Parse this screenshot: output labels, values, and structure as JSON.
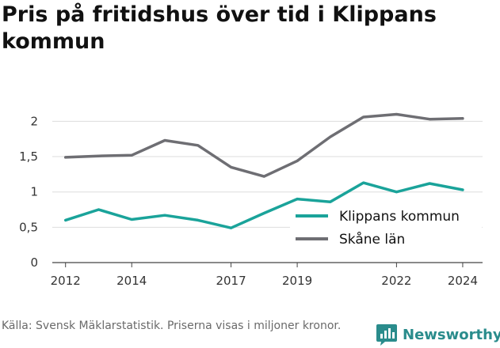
{
  "title": "Pris på fritidshus över tid i Klippans kommun",
  "footer": {
    "source": "Källa: Svensk Mäklarstatistik. Priserna visas i miljoner kronor."
  },
  "brand": {
    "name": "Newsworthy",
    "color": "#2a8c8c"
  },
  "chart_data": {
    "type": "line",
    "title": "Pris på fritidshus över tid i Klippans kommun",
    "xlabel": "",
    "ylabel": "",
    "x": [
      2012,
      2013,
      2014,
      2015,
      2016,
      2017,
      2018,
      2019,
      2020,
      2021,
      2022,
      2023,
      2024
    ],
    "xticks": [
      2012,
      2014,
      2017,
      2019,
      2022,
      2024
    ],
    "yticks": [
      0,
      0.5,
      1,
      1.5,
      2
    ],
    "ytick_labels": [
      "0",
      "0,5",
      "1",
      "1,5",
      "2"
    ],
    "ylim": [
      0,
      2.15
    ],
    "xlim": [
      2011.6,
      2024.6
    ],
    "grid": true,
    "legend": "bottom-right",
    "series": [
      {
        "name": "Klippans kommun",
        "color": "#1aa39a",
        "values": [
          0.6,
          0.75,
          0.61,
          0.67,
          0.6,
          0.49,
          0.7,
          0.9,
          0.86,
          1.13,
          1.0,
          1.12,
          1.03
        ]
      },
      {
        "name": "Skåne län",
        "color": "#6e6e73",
        "values": [
          1.49,
          1.51,
          1.52,
          1.73,
          1.66,
          1.35,
          1.22,
          1.44,
          1.78,
          2.06,
          2.1,
          2.03,
          2.04
        ]
      }
    ]
  }
}
